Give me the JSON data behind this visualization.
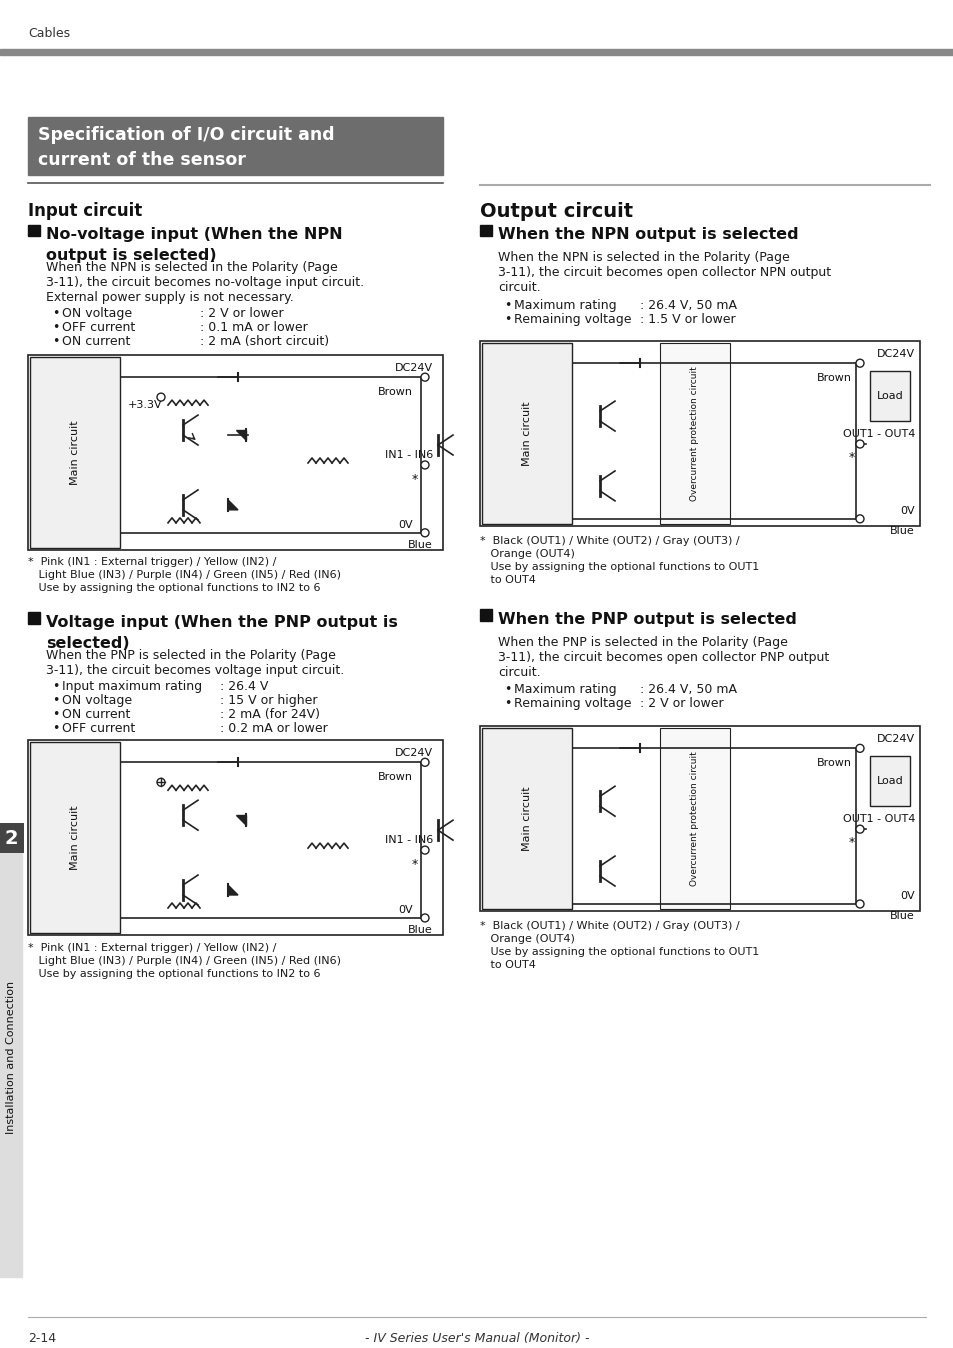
{
  "page_header": "Cables",
  "chapter_num": "2",
  "chapter_label": "Installation and Connection",
  "left_box_title": "Specification of I/O circuit and\ncurrent of the sensor",
  "input_circuit_title": "Input circuit",
  "section1_title": "No-voltage input (When the NPN\noutput is selected)",
  "section1_body": "When the NPN is selected in the Polarity (Page\n3-11), the circuit becomes no-voltage input circuit.\nExternal power supply is not necessary.",
  "section1_bullets": [
    {
      "label": "ON voltage",
      "value": ": 2 V or lower"
    },
    {
      "label": "OFF current",
      "value": ": 0.1 mA or lower"
    },
    {
      "label": "ON current",
      "value": ": 2 mA (short circuit)"
    }
  ],
  "section1_note": "*  Pink (IN1 : External trigger) / Yellow (IN2) /\n   Light Blue (IN3) / Purple (IN4) / Green (IN5) / Red (IN6)\n   Use by assigning the optional functions to IN2 to 6",
  "section2_title": "Voltage input (When the PNP output is\nselected)",
  "section2_body": "When the PNP is selected in the Polarity (Page\n3-11), the circuit becomes voltage input circuit.",
  "section2_bullets": [
    {
      "label": "Input maximum rating",
      "value": ": 26.4 V"
    },
    {
      "label": "ON voltage",
      "value": ": 15 V or higher"
    },
    {
      "label": "ON current",
      "value": ": 2 mA (for 24V)"
    },
    {
      "label": "OFF current",
      "value": ": 0.2 mA or lower"
    }
  ],
  "section2_note": "*  Pink (IN1 : External trigger) / Yellow (IN2) /\n   Light Blue (IN3) / Purple (IN4) / Green (IN5) / Red (IN6)\n   Use by assigning the optional functions to IN2 to 6",
  "output_circuit_title": "Output circuit",
  "out_section1_title": "When the NPN output is selected",
  "out_section1_body": "When the NPN is selected in the Polarity (Page\n3-11), the circuit becomes open collector NPN output\ncircuit.",
  "out_section1_bullets": [
    {
      "label": "Maximum rating",
      "value": ": 26.4 V, 50 mA"
    },
    {
      "label": "Remaining voltage",
      "value": ": 1.5 V or lower"
    }
  ],
  "out_section1_note": "*  Black (OUT1) / White (OUT2) / Gray (OUT3) /\n   Orange (OUT4)\n   Use by assigning the optional functions to OUT1\n   to OUT4",
  "out_section2_title": "When the PNP output is selected",
  "out_section2_body": "When the PNP is selected in the Polarity (Page\n3-11), the circuit becomes open collector PNP output\ncircuit.",
  "out_section2_bullets": [
    {
      "label": "Maximum rating",
      "value": ": 26.4 V, 50 mA"
    },
    {
      "label": "Remaining voltage",
      "value": ": 2 V or lower"
    }
  ],
  "out_section2_note": "*  Black (OUT1) / White (OUT2) / Gray (OUT3) /\n   Orange (OUT4)\n   Use by assigning the optional functions to OUT1\n   to OUT4",
  "footer_left": "2-14",
  "footer_right": "- IV Series User's Manual (Monitor) -",
  "colors": {
    "header_bar": "#888888",
    "left_box_bg": "#6d6d6d",
    "left_box_text": "#ffffff",
    "section_header_sq": "#222222",
    "body_text": "#1a1a1a",
    "circuit_border": "#222222",
    "right_title_line": "#aaaaaa",
    "output_title_line": "#888888"
  }
}
